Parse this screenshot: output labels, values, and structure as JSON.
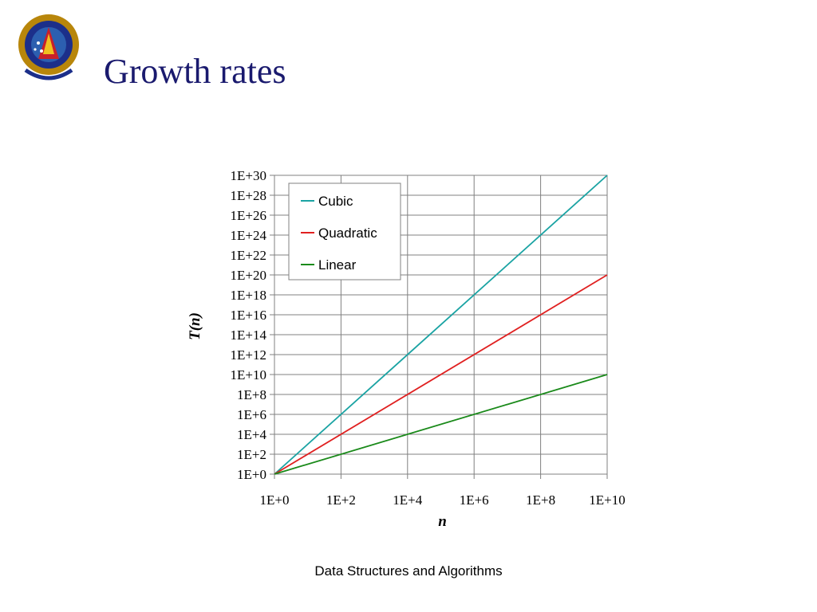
{
  "slide": {
    "title": "Growth rates",
    "footer": "Data Structures and Algorithms"
  },
  "chart_data": {
    "type": "line",
    "scale": "log-log",
    "grid": true,
    "legend_position": "top-left",
    "xlabel": "n",
    "ylabel": "T(n)",
    "xlim": [
      1,
      10000000000
    ],
    "ylim": [
      1,
      1e+30
    ],
    "x_ticks": [
      "1E+0",
      "1E+2",
      "1E+4",
      "1E+6",
      "1E+8",
      "1E+10"
    ],
    "y_ticks": [
      "1E+0",
      "1E+2",
      "1E+4",
      "1E+6",
      "1E+8",
      "1E+10",
      "1E+12",
      "1E+14",
      "1E+16",
      "1E+18",
      "1E+20",
      "1E+22",
      "1E+24",
      "1E+26",
      "1E+28",
      "1E+30"
    ],
    "series": [
      {
        "name": "Cubic",
        "color": "#1aa3a3",
        "x": [
          1,
          10000000000
        ],
        "y": [
          1,
          1e+30
        ]
      },
      {
        "name": "Quadratic",
        "color": "#e02020",
        "x": [
          1,
          10000000000
        ],
        "y": [
          1,
          1e+20
        ]
      },
      {
        "name": "Linear",
        "color": "#1a8a1a",
        "x": [
          1,
          10000000000
        ],
        "y": [
          1,
          10000000000
        ]
      }
    ]
  }
}
